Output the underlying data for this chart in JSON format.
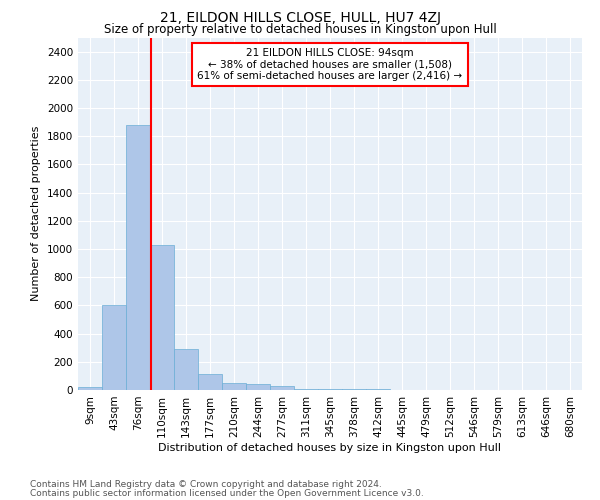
{
  "title1": "21, EILDON HILLS CLOSE, HULL, HU7 4ZJ",
  "title2": "Size of property relative to detached houses in Kingston upon Hull",
  "xlabel": "Distribution of detached houses by size in Kingston upon Hull",
  "ylabel": "Number of detached properties",
  "footnote1": "Contains HM Land Registry data © Crown copyright and database right 2024.",
  "footnote2": "Contains public sector information licensed under the Open Government Licence v3.0.",
  "bin_labels": [
    "9sqm",
    "43sqm",
    "76sqm",
    "110sqm",
    "143sqm",
    "177sqm",
    "210sqm",
    "244sqm",
    "277sqm",
    "311sqm",
    "345sqm",
    "378sqm",
    "412sqm",
    "445sqm",
    "479sqm",
    "512sqm",
    "546sqm",
    "579sqm",
    "613sqm",
    "646sqm",
    "680sqm"
  ],
  "bar_values": [
    20,
    600,
    1880,
    1030,
    290,
    110,
    50,
    45,
    30,
    5,
    5,
    5,
    5,
    3,
    2,
    1,
    1,
    1,
    1,
    1,
    0
  ],
  "bar_color": "#aec6e8",
  "bar_edge_color": "#6aaed6",
  "property_line_x": 2.53,
  "property_line_color": "red",
  "annotation_text": "21 EILDON HILLS CLOSE: 94sqm\n← 38% of detached houses are smaller (1,508)\n61% of semi-detached houses are larger (2,416) →",
  "annotation_box_color": "white",
  "annotation_box_edge_color": "red",
  "ylim": [
    0,
    2500
  ],
  "yticks": [
    0,
    200,
    400,
    600,
    800,
    1000,
    1200,
    1400,
    1600,
    1800,
    2000,
    2200,
    2400
  ],
  "background_color": "#e8f0f8",
  "grid_color": "white",
  "title1_fontsize": 10,
  "title2_fontsize": 8.5,
  "xlabel_fontsize": 8,
  "ylabel_fontsize": 8,
  "tick_fontsize": 7.5,
  "annotation_fontsize": 7.5,
  "footnote_fontsize": 6.5
}
